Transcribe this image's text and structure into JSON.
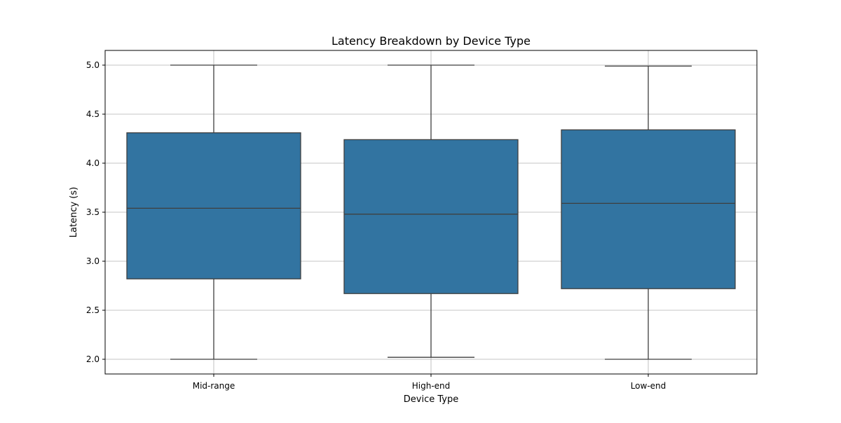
{
  "chart_data": {
    "type": "box",
    "title": "Latency Breakdown by Device Type",
    "xlabel": "Device Type",
    "ylabel": "Latency (s)",
    "categories": [
      "Mid-range",
      "High-end",
      "Low-end"
    ],
    "boxes": [
      {
        "category": "Mid-range",
        "whisker_low": 2.0,
        "q1": 2.82,
        "median": 3.54,
        "q3": 4.31,
        "whisker_high": 5.0
      },
      {
        "category": "High-end",
        "whisker_low": 2.02,
        "q1": 2.67,
        "median": 3.48,
        "q3": 4.24,
        "whisker_high": 5.0
      },
      {
        "category": "Low-end",
        "whisker_low": 2.0,
        "q1": 2.72,
        "median": 3.59,
        "q3": 4.34,
        "whisker_high": 4.99
      }
    ],
    "ylim": [
      1.85,
      5.15
    ],
    "yticks": [
      "2.0",
      "2.5",
      "3.0",
      "3.5",
      "4.0",
      "4.5",
      "5.0"
    ],
    "grid": true,
    "colors": {
      "box_fill": "#3274a1",
      "box_edge": "#3f3f3f",
      "grid": "#b0b0b0",
      "axes": "#000000"
    }
  }
}
